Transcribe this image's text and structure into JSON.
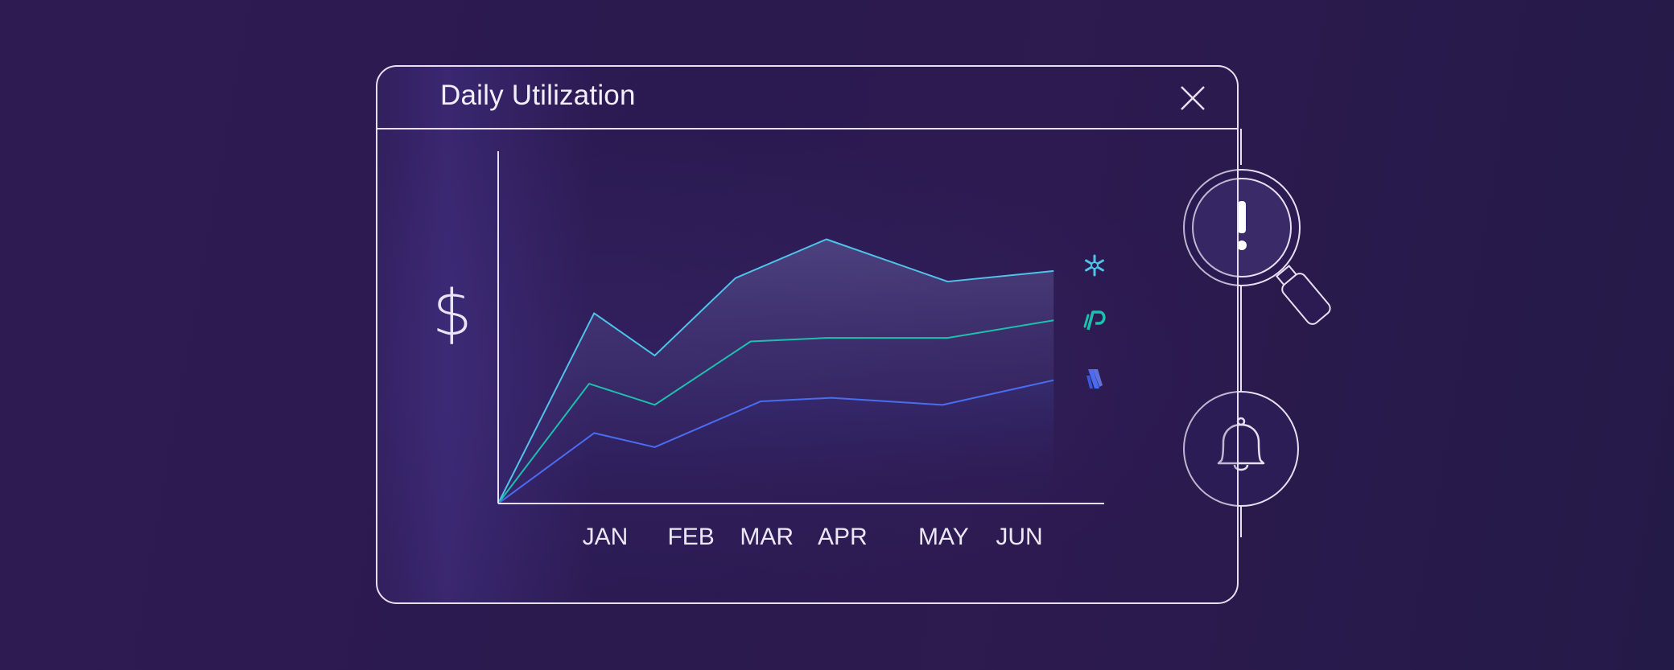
{
  "window": {
    "title": "Daily Utilization",
    "currency_symbol": "$"
  },
  "colors": {
    "background": "#2a1a4e",
    "frame": "#e6e0f2",
    "series_1": "#4fc3e8",
    "series_2": "#1fbfae",
    "series_3": "#4a6cf0"
  },
  "icons": {
    "close": "close-icon",
    "alert": "magnifier-alert-icon",
    "bell": "bell-icon",
    "series_1_logo": "snowflake-icon",
    "series_2_logo": "p-logo-icon",
    "series_3_logo": "stripes-logo-icon"
  },
  "chart_data": {
    "type": "area",
    "title": "Daily Utilization",
    "ylabel": "$",
    "xlabel": "",
    "categories": [
      "JAN",
      "FEB",
      "MAR",
      "APR",
      "MAY",
      "JUN"
    ],
    "ylim": [
      0,
      100
    ],
    "grid": false,
    "legend": "right-end logos",
    "series": [
      {
        "logo": "snowflake-icon",
        "color": "#4fc3e8",
        "x": [
          0.0,
          0.95,
          1.55,
          2.35,
          3.25,
          4.45,
          5.5
        ],
        "y": [
          0,
          54,
          42,
          64,
          75,
          63,
          66
        ]
      },
      {
        "logo": "p-logo-icon",
        "color": "#1fbfae",
        "x": [
          0.0,
          0.9,
          1.55,
          2.5,
          3.25,
          4.45,
          5.5
        ],
        "y": [
          0,
          34,
          28,
          46,
          47,
          47,
          52
        ]
      },
      {
        "logo": "stripes-logo-icon",
        "color": "#4a6cf0",
        "x": [
          0.0,
          0.95,
          1.55,
          2.6,
          3.3,
          4.4,
          5.5
        ],
        "y": [
          0,
          20,
          16,
          29,
          30,
          28,
          35
        ]
      }
    ]
  }
}
